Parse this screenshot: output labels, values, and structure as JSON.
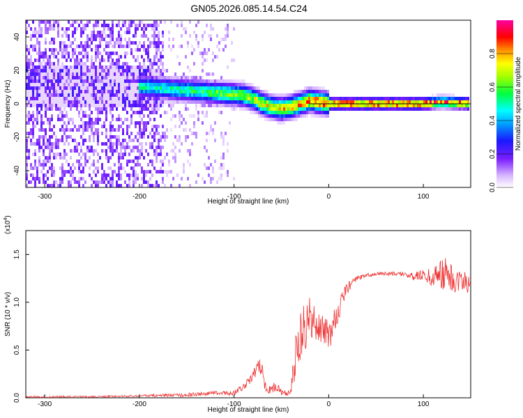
{
  "title": "GN05.2026.085.14.54.C24",
  "chart_data": [
    {
      "type": "heatmap",
      "xlabel": "Height of straight line (km)",
      "ylabel": "Frequency (Hz)",
      "xlim": [
        -320,
        150
      ],
      "ylim": [
        -50,
        50
      ],
      "x_ticks": [
        -300,
        -200,
        -100,
        0,
        100
      ],
      "x_tick_labels": [
        "-300",
        "-200",
        "-100",
        "0",
        "100"
      ],
      "y_ticks": [
        -40,
        -20,
        0,
        20,
        40
      ],
      "y_tick_labels": [
        "-40",
        "-20",
        "0",
        "20",
        "40"
      ],
      "colorbar": {
        "label": "Normalized spectral amplitude",
        "range": [
          0,
          1
        ],
        "ticks": [
          0.0,
          0.2,
          0.4,
          0.6,
          0.8
        ],
        "tick_labels": [
          "0.0",
          "0.2",
          "0.4",
          "0.6",
          "0.8"
        ]
      },
      "ridge": {
        "heights_km": [
          -190,
          -170,
          -150,
          -130,
          -110,
          -90,
          -80,
          -70,
          -60,
          -50,
          -40,
          -30,
          -20,
          -10,
          0,
          20,
          50,
          80,
          100,
          120,
          150
        ],
        "frequency_hz": [
          10,
          9,
          8,
          7,
          6,
          5,
          3,
          0,
          -2,
          -3,
          -2,
          0,
          2,
          1,
          0,
          0,
          0,
          0,
          0,
          1,
          0
        ],
        "peak_amplitude": [
          0.55,
          0.55,
          0.6,
          0.6,
          0.7,
          0.7,
          0.75,
          0.8,
          0.8,
          0.85,
          0.85,
          0.9,
          0.95,
          0.95,
          0.98,
          1,
          1,
          1,
          1,
          0.95,
          0.95
        ]
      }
    },
    {
      "type": "line",
      "xlabel": "Height of straight line (km)",
      "ylabel": "SNR (10 * v/v)",
      "y_scale_note": "(x10",
      "y_scale_exp": "4",
      "xlim": [
        -320,
        150
      ],
      "ylim": [
        0,
        1.75
      ],
      "x_ticks": [
        -300,
        -200,
        -100,
        0,
        100
      ],
      "x_tick_labels": [
        "-300",
        "-200",
        "-100",
        "0",
        "100"
      ],
      "y_ticks": [
        0,
        0.5,
        1.0,
        1.5
      ],
      "y_tick_labels": [
        "0.0",
        "0.5",
        "1.0",
        "1.5"
      ],
      "color": "#ee3030",
      "series": [
        {
          "name": "SNR",
          "x": [
            -320,
            -300,
            -250,
            -200,
            -150,
            -120,
            -100,
            -90,
            -80,
            -75,
            -70,
            -68,
            -65,
            -60,
            -55,
            -50,
            -45,
            -40,
            -38,
            -35,
            -30,
            -25,
            -20,
            -15,
            -10,
            -5,
            0,
            5,
            10,
            15,
            20,
            25,
            30,
            40,
            50,
            60,
            70,
            80,
            90,
            100,
            110,
            115,
            120,
            125,
            130,
            140,
            150
          ],
          "y": [
            0.01,
            0.01,
            0.01,
            0.02,
            0.03,
            0.05,
            0.05,
            0.12,
            0.22,
            0.35,
            0.28,
            0.15,
            0.08,
            0.1,
            0.12,
            0.06,
            0.05,
            0.05,
            0.2,
            0.45,
            0.65,
            0.75,
            0.85,
            0.75,
            0.8,
            0.7,
            0.65,
            0.75,
            0.9,
            1.05,
            1.15,
            1.2,
            1.25,
            1.28,
            1.3,
            1.3,
            1.3,
            1.29,
            1.28,
            1.28,
            1.26,
            1.3,
            1.3,
            1.27,
            1.25,
            1.22,
            1.2
          ],
          "noise_amplitude": [
            0.01,
            0.01,
            0.01,
            0.01,
            0.02,
            0.02,
            0.03,
            0.04,
            0.05,
            0.08,
            0.08,
            0.05,
            0.04,
            0.05,
            0.05,
            0.03,
            0.03,
            0.05,
            0.15,
            0.2,
            0.25,
            0.25,
            0.25,
            0.25,
            0.2,
            0.2,
            0.15,
            0.15,
            0.12,
            0.1,
            0.06,
            0.04,
            0.03,
            0.02,
            0.02,
            0.02,
            0.02,
            0.03,
            0.05,
            0.06,
            0.1,
            0.15,
            0.2,
            0.18,
            0.15,
            0.12,
            0.12
          ]
        }
      ]
    }
  ]
}
